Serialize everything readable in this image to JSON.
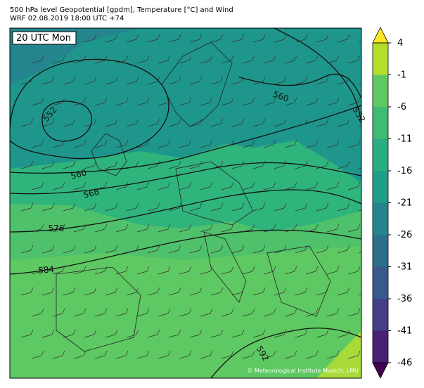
{
  "header": {
    "title": "500 hPa level Geopotential [gpdm], Temperature [°C] and Wind",
    "subtitle": "WRF 02.08.2019 18:00 UTC +74"
  },
  "map": {
    "time_label": "20 UTC Mon",
    "contour_labels": [
      "552",
      "560",
      "568",
      "576",
      "584",
      "592",
      "560",
      "552"
    ],
    "credit": "© Meteorological Institute Munich, LMU"
  },
  "colorbar": {
    "ticks": [
      4,
      -1,
      -6,
      -11,
      -16,
      -21,
      -26,
      -31,
      -36,
      -41,
      -46
    ],
    "colors": [
      "#b5de2b",
      "#5ec962",
      "#3fbc73",
      "#28ae80",
      "#1f9e89",
      "#25858e",
      "#2d708e",
      "#38598c",
      "#433e85",
      "#482173"
    ],
    "over_color": "#fde725",
    "under_color": "#440154"
  }
}
